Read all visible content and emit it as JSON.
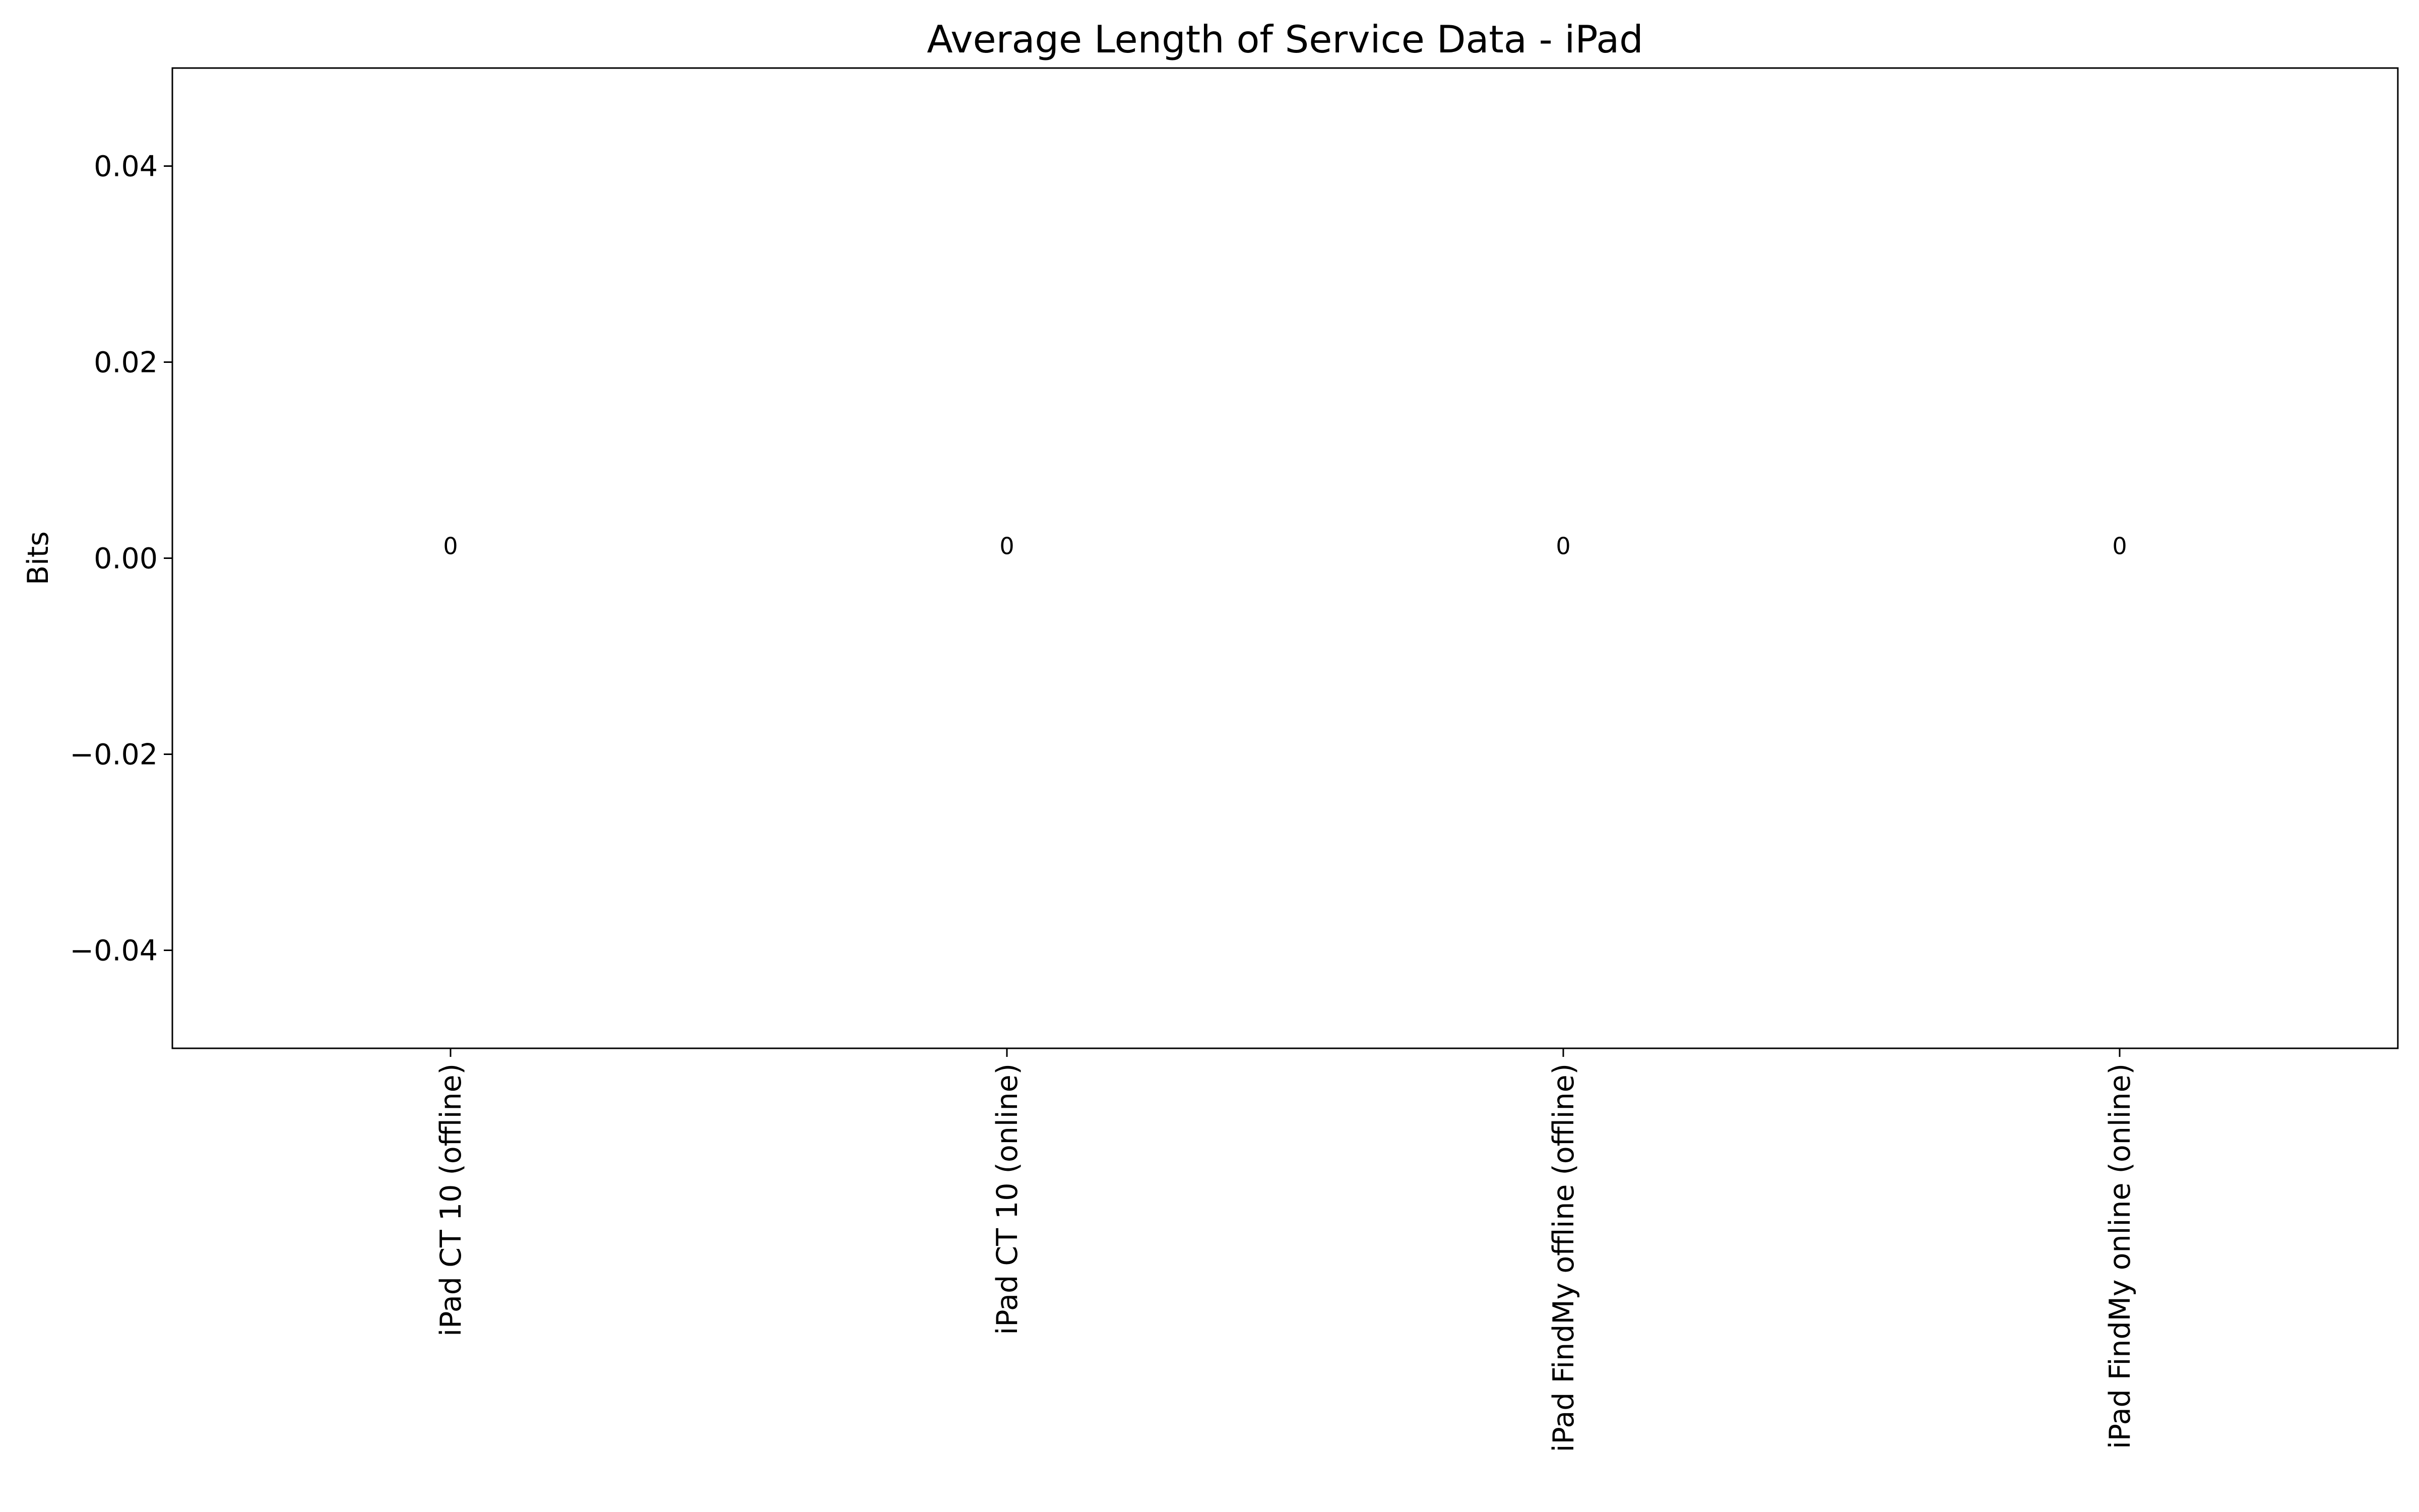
{
  "chart_data": {
    "type": "bar",
    "title": "Average Length of Service Data - iPad",
    "xlabel": "",
    "ylabel": "Bits",
    "categories": [
      "iPad CT 10 (offline)",
      "iPad CT 10 (online)",
      "iPad FindMy offline (offline)",
      "iPad FindMy online (online)"
    ],
    "values": [
      0,
      0,
      0,
      0
    ],
    "data_labels": [
      "0",
      "0",
      "0",
      "0"
    ],
    "ylim": [
      -0.05,
      0.05
    ],
    "yticks": [
      -0.04,
      -0.02,
      0.0,
      0.02,
      0.04
    ],
    "ytick_labels": [
      "−0.04",
      "−0.02",
      "0.00",
      "0.02",
      "0.04"
    ],
    "grid": false,
    "legend": "none",
    "bar_color": "#1f77b4"
  }
}
